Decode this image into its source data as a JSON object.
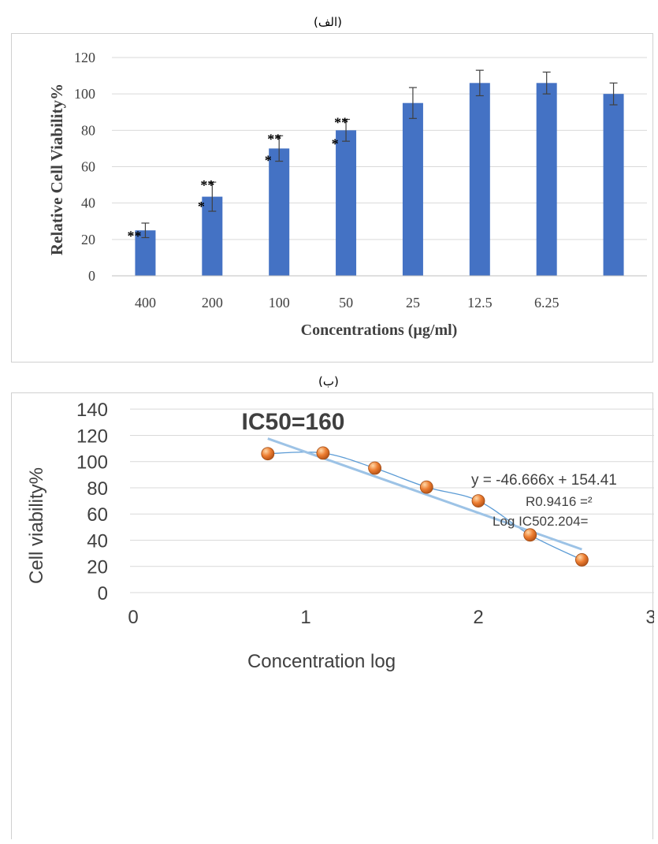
{
  "captions": {
    "top": "(الف)",
    "bottom": "(ب)"
  },
  "colors": {
    "bar": "#4472C4",
    "trend": "#9DC3E6",
    "point": "#ED7D31",
    "curve": "#5B9BD5"
  },
  "chart_data": [
    {
      "type": "bar",
      "xlabel": "Concentrations (µg/ml)",
      "ylabel": "Relative Cell Viability%",
      "ylim": [
        0,
        120
      ],
      "yticks": [
        "0",
        "20",
        "40",
        "60",
        "80",
        "100",
        "120"
      ],
      "categories": [
        "400",
        "200",
        "100",
        "50",
        "25",
        "12.5",
        "6.25",
        ""
      ],
      "values": [
        25,
        43.5,
        70,
        80,
        95,
        106,
        106,
        100
      ],
      "errors": [
        4,
        8,
        7,
        6,
        8.5,
        7,
        6,
        6
      ],
      "significance": [
        "**",
        "***",
        "***",
        "***",
        "",
        "",
        "",
        ""
      ],
      "grid": true
    },
    {
      "type": "scatter",
      "title": "IC50=160",
      "xlabel": "Concentration log",
      "ylabel": "Cell viability%",
      "xlim": [
        0,
        3
      ],
      "ylim": [
        0,
        140
      ],
      "xticks": [
        "0",
        "1",
        "2",
        "3"
      ],
      "yticks": [
        "0",
        "20",
        "40",
        "60",
        "80",
        "100",
        "120",
        "140"
      ],
      "points": [
        {
          "x": 0.78,
          "y": 106
        },
        {
          "x": 1.1,
          "y": 106.5
        },
        {
          "x": 1.4,
          "y": 95
        },
        {
          "x": 1.7,
          "y": 80.5
        },
        {
          "x": 2.0,
          "y": 70
        },
        {
          "x": 2.3,
          "y": 44
        },
        {
          "x": 2.6,
          "y": 25
        }
      ],
      "trendline": {
        "x": [
          0.78,
          2.6
        ],
        "y": [
          117.5,
          33
        ]
      },
      "annotations": {
        "equation": "y = -46.666x + 154.41",
        "r2": "R0.9416 =²",
        "log_ic50": "Log IC502.204="
      },
      "grid": true
    }
  ]
}
